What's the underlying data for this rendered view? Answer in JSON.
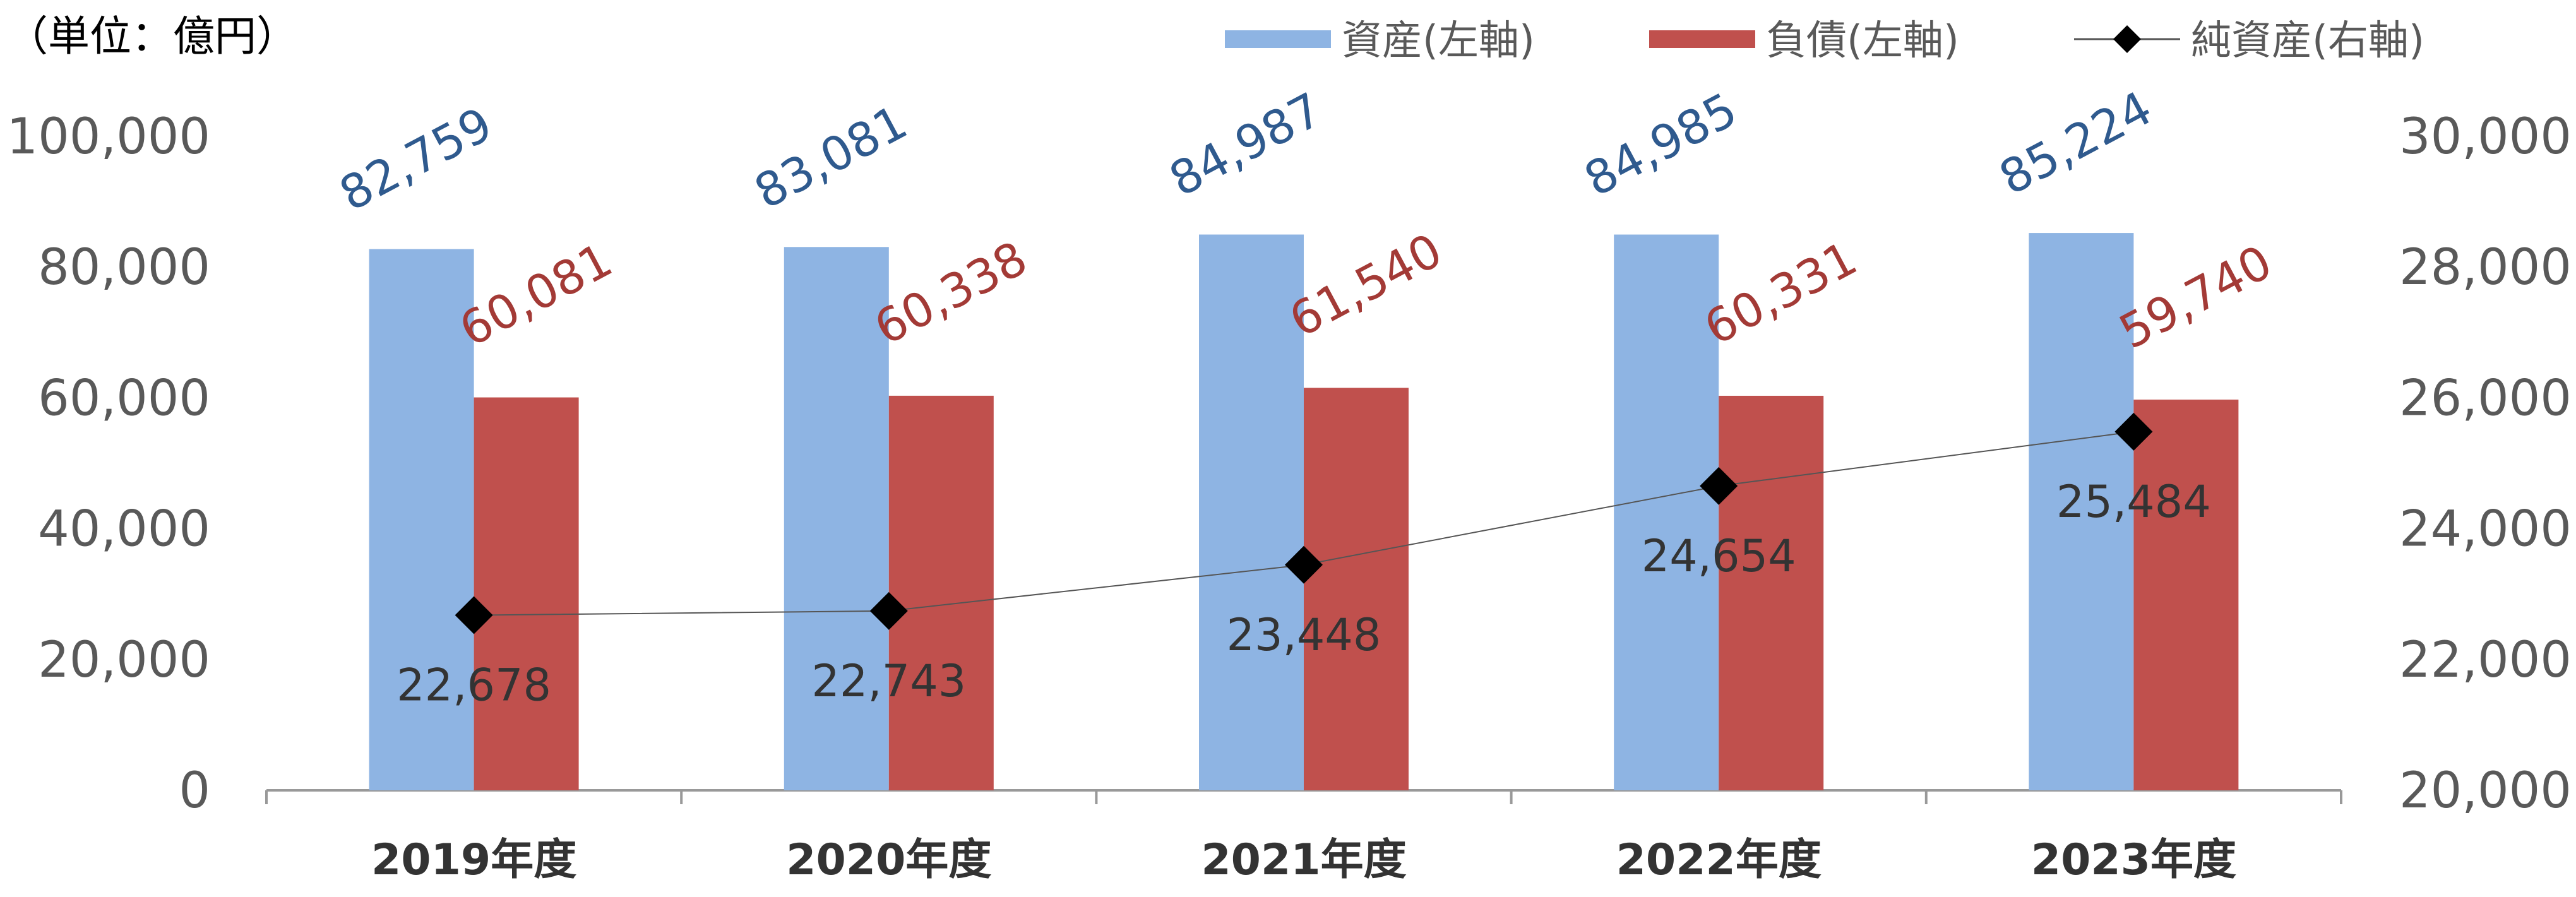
{
  "chart_data": {
    "type": "bar+line",
    "unit_label": "（単位：億円）",
    "categories": [
      "2019年度",
      "2020年度",
      "2021年度",
      "2022年度",
      "2023年度"
    ],
    "series": [
      {
        "name": "資産(左軸)",
        "type": "bar",
        "axis": "left",
        "color": "#8EB4E3",
        "label_color": "#2F5A8E",
        "values": [
          82759,
          83081,
          84987,
          84985,
          85224
        ],
        "labels": [
          "82,759",
          "83,081",
          "84,987",
          "84,985",
          "85,224"
        ]
      },
      {
        "name": "負債(左軸)",
        "type": "bar",
        "axis": "left",
        "color": "#C0504D",
        "label_color": "#A33A36",
        "values": [
          60081,
          60338,
          61540,
          60331,
          59740
        ],
        "labels": [
          "60,081",
          "60,338",
          "61,540",
          "60,331",
          "59,740"
        ]
      },
      {
        "name": "純資産(右軸)",
        "type": "line",
        "axis": "right",
        "color": "#000000",
        "label_color": "#333333",
        "marker": "diamond",
        "values": [
          22678,
          22743,
          23448,
          24654,
          25484
        ],
        "labels": [
          "22,678",
          "22,743",
          "23,448",
          "24,654",
          "25,484"
        ]
      }
    ],
    "left_axis": {
      "range": [
        0,
        100000
      ],
      "ticks": [
        "0",
        "20,000",
        "40,000",
        "60,000",
        "80,000",
        "100,000"
      ]
    },
    "right_axis": {
      "range": [
        20000,
        30000
      ],
      "ticks": [
        "20,000",
        "22,000",
        "24,000",
        "26,000",
        "28,000",
        "30,000"
      ]
    },
    "grid": false,
    "legend_position": "top-right"
  }
}
